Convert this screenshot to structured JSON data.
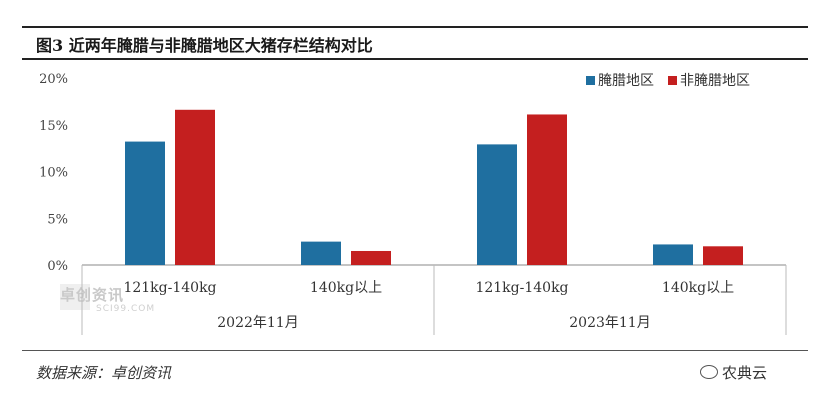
{
  "title": "图3 近两年腌腊与非腌腊地区大猪存栏结构对比",
  "source": "数据来源：卓创资讯",
  "logo": "农典云",
  "watermark": "卓创资讯",
  "watermark_sub": "SCI99.COM",
  "chart_data": {
    "type": "bar",
    "title": "图3 近两年腌腊与非腌腊地区大猪存栏结构对比",
    "groups": [
      "2022年11月",
      "2023年11月"
    ],
    "categories": [
      "121kg-140kg",
      "140kg以上",
      "121kg-140kg",
      "140kg以上"
    ],
    "series": [
      {
        "name": "腌腊地区",
        "color": "#1f6fa0",
        "values": [
          13.2,
          2.5,
          12.9,
          2.2
        ]
      },
      {
        "name": "非腌腊地区",
        "color": "#c41f1f",
        "values": [
          16.6,
          1.5,
          16.1,
          2.0
        ]
      }
    ],
    "yticks": [
      "0%",
      "5%",
      "10%",
      "15%",
      "20%"
    ],
    "ylim": [
      0,
      20
    ],
    "legend_position": "top-right",
    "grid": false
  }
}
